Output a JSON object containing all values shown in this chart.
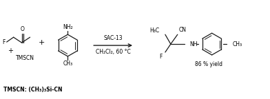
{
  "background_color": "#ffffff",
  "figure_width": 3.92,
  "figure_height": 1.44,
  "dpi": 100,
  "arrow_label_top": "SAC-13",
  "arrow_label_bottom": "CH₂Cl₂, 60 °C",
  "yield_text": "86 % yield",
  "tmscn_label": "TMSCN: (CH₃)₃Si-CN",
  "plus1": "+",
  "plus2": "+",
  "tmscn_text": "TMSCN",
  "line_color": "#1a1a1a",
  "text_color": "#000000",
  "font_size_main": 6.0,
  "font_size_small": 5.5,
  "font_size_footnote": 5.5
}
